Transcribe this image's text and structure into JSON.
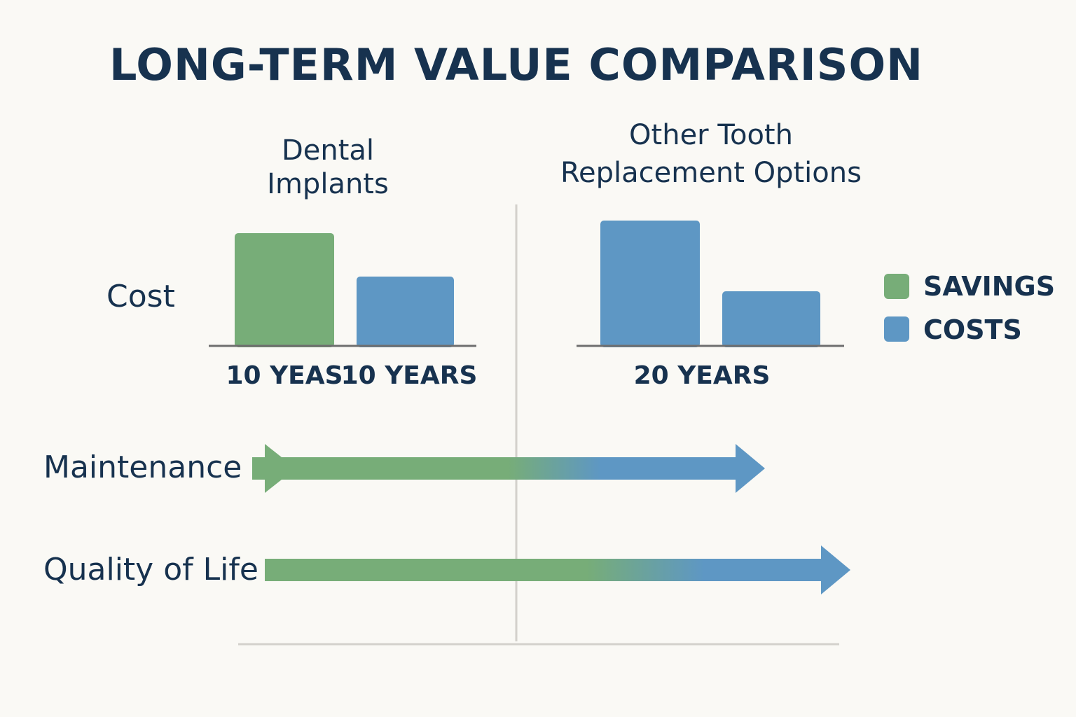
{
  "chart_data": {
    "type": "bar",
    "title": "LONG-TERM VALUE COMPARISON",
    "groups": [
      {
        "title_lines": [
          "Dental",
          "Implants"
        ],
        "bars": [
          {
            "label": "10 YEAS",
            "series": "SAVINGS",
            "value": 161
          },
          {
            "label": "10 YEARS",
            "series": "COSTS",
            "value": 99
          }
        ],
        "group_label": ""
      },
      {
        "title_lines": [
          "Other Tooth",
          "Replacement Options"
        ],
        "bars": [
          {
            "label": "",
            "series": "COSTS",
            "value": 179
          },
          {
            "label": "",
            "series": "COSTS",
            "value": 78
          }
        ],
        "group_label": "20 YEARS"
      }
    ],
    "ylabel": "Cost",
    "units": "relative (unlabeled axis)",
    "ylim": [
      0,
      180
    ],
    "legend": {
      "placement": "right",
      "entries": [
        {
          "label": "SAVINGS",
          "color": "#77ad78"
        },
        {
          "label": "COSTS",
          "color": "#5e97c4"
        }
      ]
    },
    "arrows": [
      {
        "label": "Maintenance",
        "extent": 0.72
      },
      {
        "label": "Quality of Life",
        "extent": 0.84
      }
    ],
    "colors": {
      "savings": "#77ad78",
      "costs": "#5e97c4",
      "text": "#17324f",
      "background": "#faf9f5"
    }
  }
}
